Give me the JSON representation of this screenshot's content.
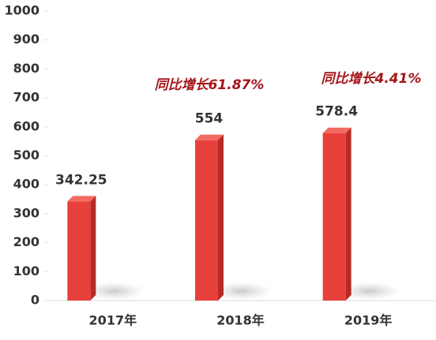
{
  "chart_data": {
    "type": "bar",
    "categories": [
      "2017年",
      "2018年",
      "2019年"
    ],
    "values": [
      342.25,
      554,
      578.4
    ],
    "color": "#e8403a",
    "ylim": [
      0,
      1000
    ],
    "yticks": [
      0,
      100,
      200,
      300,
      400,
      500,
      600,
      700,
      800,
      900,
      1000
    ],
    "annotations": [
      "同比增长61.87%",
      "同比增长4.41%"
    ]
  }
}
